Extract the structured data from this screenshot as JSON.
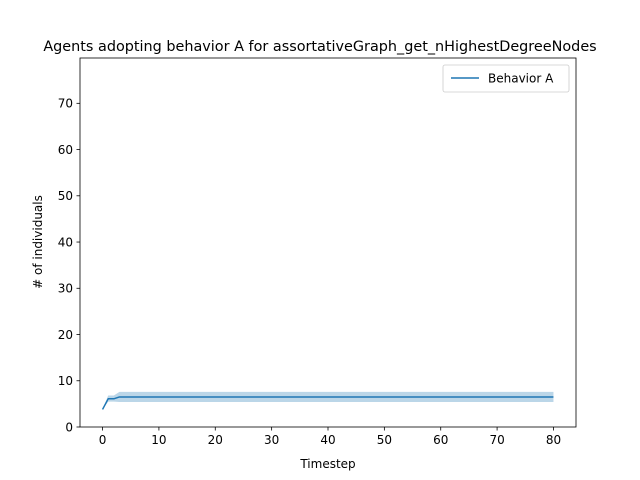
{
  "chart_data": {
    "type": "line",
    "title": "Agents adopting behavior A for assortativeGraph_get_nHighestDegreeNodes",
    "xlabel": "Timestep",
    "ylabel": "# of individuals",
    "xlim": [
      -4,
      84
    ],
    "ylim": [
      0,
      79.8
    ],
    "xticks": [
      0,
      10,
      20,
      30,
      40,
      50,
      60,
      70,
      80
    ],
    "yticks": [
      0,
      10,
      20,
      30,
      40,
      50,
      60,
      70
    ],
    "grid": false,
    "legend_position": "top-right",
    "series": [
      {
        "name": "Behavior A",
        "color": "#1f77b4",
        "band_color": "#1f77b4",
        "x": [
          0,
          1,
          2,
          3,
          80
        ],
        "y": [
          3.8,
          6.1,
          6.1,
          6.5,
          6.5
        ],
        "y_lower": [
          3.8,
          5.5,
          5.5,
          5.4,
          5.4
        ],
        "y_upper": [
          3.8,
          6.8,
          6.8,
          7.6,
          7.6
        ]
      }
    ]
  }
}
